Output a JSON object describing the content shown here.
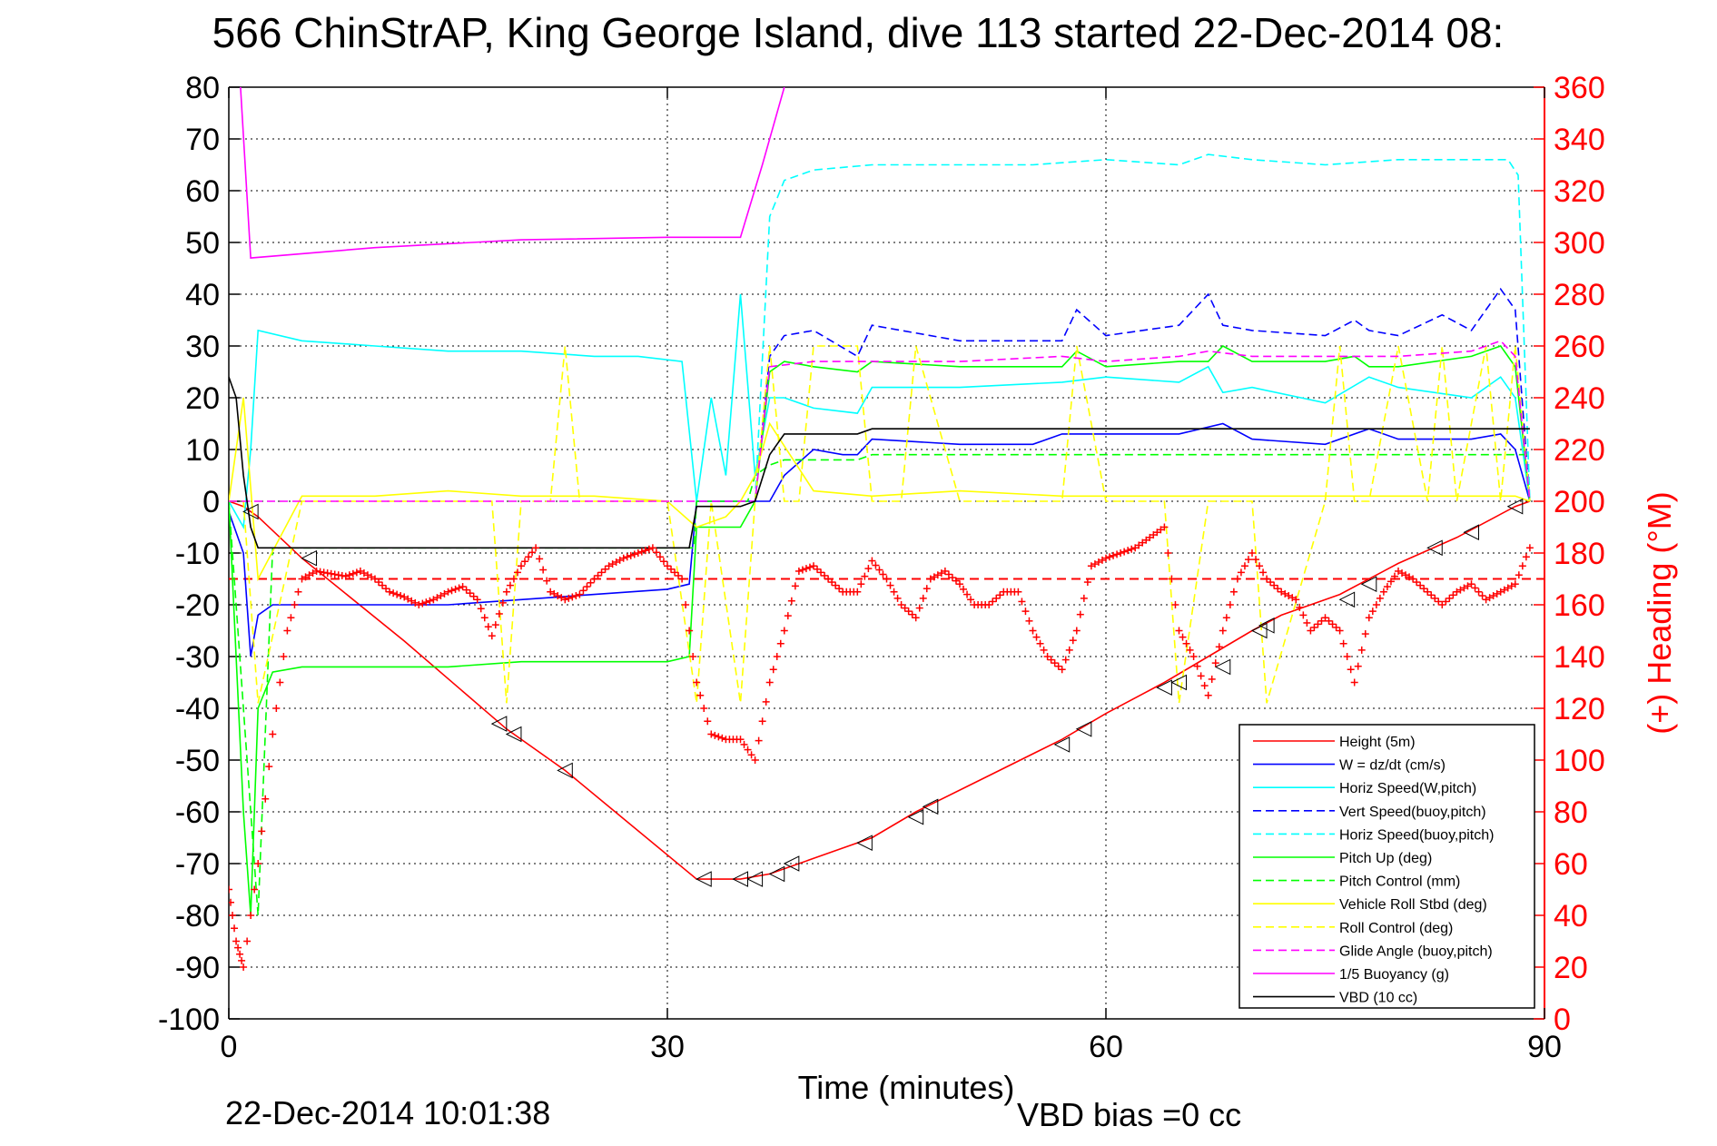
{
  "chart_data": {
    "type": "line",
    "title": "566 ChinStrAP, King George Island, dive 113 started 22-Dec-2014 08:",
    "xlabel": "Time (minutes)",
    "ylabel_right": "(+) Heading (°M)",
    "footer_left": "22-Dec-2014 10:01:38",
    "footer_right": "VBD bias =0 cc",
    "xlim": [
      0,
      90
    ],
    "ylim_left": [
      -100,
      80
    ],
    "ylim_right": [
      0,
      360
    ],
    "x_ticks": [
      "0",
      "30",
      "60",
      "90"
    ],
    "y_ticks_left": [
      "80",
      "70",
      "60",
      "50",
      "40",
      "30",
      "20",
      "10",
      "0",
      "-10",
      "-20",
      "-30",
      "-40",
      "-50",
      "-60",
      "-70",
      "-80",
      "-90",
      "-100"
    ],
    "y_ticks_right": [
      "360",
      "340",
      "320",
      "300",
      "280",
      "260",
      "240",
      "220",
      "200",
      "180",
      "160",
      "140",
      "120",
      "100",
      "80",
      "60",
      "40",
      "20",
      "0"
    ],
    "grid": true,
    "legend_position": "bottom-right",
    "series": [
      {
        "name": "Height (5m)",
        "color": "#ff0000",
        "style": "solid",
        "x": [
          0,
          1,
          2,
          5,
          12,
          19,
          23,
          32,
          35,
          37,
          40,
          44,
          47,
          52,
          57,
          60,
          64,
          67,
          70,
          72,
          76,
          80,
          84,
          88,
          89
        ],
        "y": [
          0,
          -1,
          -3,
          -11,
          -27,
          -44,
          -52,
          -73,
          -73,
          -72,
          -69,
          -65,
          -60,
          -53,
          -46,
          -41,
          -35,
          -30,
          -25,
          -22,
          -18,
          -12,
          -7,
          -1,
          0
        ]
      },
      {
        "name": "W = dz/dt (cm/s)",
        "color": "#0000ff",
        "style": "solid",
        "x": [
          0,
          1,
          1.5,
          2,
          3,
          5,
          10,
          15,
          20,
          25,
          30,
          31.5,
          32,
          33,
          35,
          36,
          37,
          38,
          40,
          42,
          43,
          44,
          50,
          55,
          57,
          60,
          65,
          68,
          70,
          75,
          78,
          80,
          85,
          87,
          88,
          89
        ],
        "y": [
          -2,
          -10,
          -30,
          -22,
          -20,
          -20,
          -20,
          -20,
          -19,
          -18,
          -17,
          -16,
          0,
          0,
          0,
          0,
          0,
          5,
          10,
          9,
          9,
          12,
          11,
          11,
          13,
          13,
          13,
          15,
          12,
          11,
          14,
          12,
          12,
          13,
          10,
          0
        ]
      },
      {
        "name": "Horiz Speed(W,pitch)",
        "color": "#00ffff",
        "style": "solid",
        "x": [
          0,
          1,
          1.5,
          2,
          5,
          10,
          15,
          20,
          25,
          28,
          31,
          32,
          33,
          34,
          35,
          36,
          37,
          38,
          40,
          43,
          44,
          50,
          57,
          60,
          65,
          67,
          68,
          70,
          75,
          78,
          80,
          85,
          87,
          88,
          89
        ],
        "y": [
          0,
          -5,
          10,
          33,
          31,
          30,
          29,
          29,
          28,
          28,
          27,
          0,
          20,
          5,
          40,
          5,
          20,
          20,
          18,
          17,
          22,
          22,
          23,
          24,
          23,
          26,
          21,
          22,
          19,
          24,
          22,
          20,
          24,
          20,
          0
        ]
      },
      {
        "name": "Vert Speed(buoy,pitch)",
        "color": "#0000ff",
        "style": "dashed",
        "x": [
          36,
          37,
          38,
          40,
          43,
          44,
          50,
          57,
          58,
          60,
          65,
          67,
          68,
          70,
          75,
          77,
          78,
          80,
          83,
          85,
          87,
          88,
          89
        ],
        "y": [
          0,
          28,
          32,
          33,
          28,
          34,
          31,
          31,
          37,
          32,
          34,
          40,
          34,
          33,
          32,
          35,
          33,
          32,
          36,
          33,
          41,
          37,
          0
        ]
      },
      {
        "name": "Horiz Speed(buoy,pitch)",
        "color": "#00ffff",
        "style": "dashed",
        "x": [
          36,
          37,
          38,
          40,
          44,
          50,
          55,
          60,
          65,
          67,
          70,
          75,
          80,
          85,
          87.5,
          88.2,
          89
        ],
        "y": [
          0,
          55,
          62,
          64,
          65,
          65,
          65,
          66,
          65,
          67,
          66,
          65,
          66,
          66,
          66,
          63,
          0
        ]
      },
      {
        "name": "Pitch Up (deg)",
        "color": "#00ff00",
        "style": "solid",
        "x": [
          0,
          1,
          1.5,
          2,
          3,
          5,
          10,
          15,
          20,
          25,
          30,
          31.5,
          32,
          33,
          35,
          36,
          37,
          38,
          40,
          43,
          44,
          50,
          57,
          58,
          60,
          65,
          67,
          68,
          70,
          75,
          77,
          78,
          80,
          85,
          87,
          88,
          89
        ],
        "y": [
          0,
          -60,
          -80,
          -40,
          -33,
          -32,
          -32,
          -32,
          -31,
          -31,
          -31,
          -30,
          -5,
          -5,
          -5,
          0,
          25,
          27,
          26,
          25,
          27,
          26,
          26,
          29,
          26,
          27,
          27,
          30,
          27,
          27,
          28,
          26,
          26,
          28,
          30,
          26,
          0
        ]
      },
      {
        "name": "Pitch Control (mm)",
        "color": "#00ff00",
        "style": "dashed",
        "x": [
          0,
          1,
          2,
          3,
          31.8,
          32,
          35.5,
          36,
          37,
          38,
          43,
          44,
          89
        ],
        "y": [
          0,
          -40,
          -80,
          -9,
          -9,
          0,
          0,
          5,
          7,
          8,
          8,
          9,
          9
        ]
      },
      {
        "name": "Vehicle Roll Stbd (deg)",
        "color": "#ffff00",
        "style": "solid",
        "x": [
          0,
          1,
          2,
          5,
          10,
          15,
          20,
          25,
          30,
          32,
          34,
          35,
          36,
          37,
          40,
          44,
          50,
          57,
          60,
          65,
          68,
          70,
          75,
          80,
          85,
          88,
          89
        ],
        "y": [
          0,
          20,
          -15,
          1,
          1,
          2,
          1,
          1,
          0,
          -5,
          -3,
          0,
          5,
          15,
          2,
          1,
          2,
          1,
          1,
          1,
          1,
          1,
          1,
          1,
          1,
          1,
          0
        ]
      },
      {
        "name": "Roll Control (deg)",
        "color": "#ffff00",
        "style": "dashed",
        "x": [
          0,
          1,
          2,
          5,
          10,
          18,
          19,
          20,
          22,
          23,
          24,
          30,
          32,
          33,
          35,
          36,
          37,
          38,
          39,
          40,
          43,
          44,
          46,
          47,
          50,
          57,
          58,
          60,
          64,
          65,
          67,
          70,
          71,
          75,
          76,
          77,
          78,
          80,
          82,
          83,
          84,
          86,
          87,
          88,
          89
        ],
        "y": [
          0,
          0,
          -39,
          0,
          0,
          0,
          -39,
          0,
          0,
          30,
          0,
          0,
          -39,
          0,
          -39,
          0,
          30,
          0,
          0,
          30,
          30,
          0,
          0,
          30,
          0,
          0,
          30,
          0,
          0,
          -39,
          0,
          0,
          -39,
          0,
          30,
          0,
          0,
          30,
          0,
          30,
          0,
          30,
          0,
          30,
          0
        ]
      },
      {
        "name": "Glide Angle (buoy,pitch)",
        "color": "#ff00ff",
        "style": "dashed",
        "x": [
          0,
          36,
          37,
          40,
          44,
          50,
          57,
          60,
          65,
          67,
          70,
          75,
          80,
          85,
          87,
          88,
          89
        ],
        "y": [
          0,
          0,
          26,
          27,
          27,
          27,
          28,
          27,
          28,
          29,
          28,
          28,
          28,
          29,
          31,
          28,
          0
        ]
      },
      {
        "name": "1/5 Buoyancy (g)",
        "color": "#ff00ff",
        "style": "solid",
        "x": [
          0.8,
          1.5,
          10,
          20,
          30,
          35,
          36.5,
          38
        ],
        "y": [
          80,
          47,
          49,
          50.5,
          51,
          51,
          65,
          80
        ]
      },
      {
        "name": "VBD (10 cc)",
        "color": "#000000",
        "style": "solid",
        "x": [
          0,
          0.5,
          1,
          1.5,
          2,
          31.5,
          32,
          34,
          35,
          36,
          37,
          38,
          42,
          43,
          44,
          89
        ],
        "y": [
          24,
          20,
          5,
          -5,
          -9,
          -9,
          -1,
          -1,
          -1,
          0,
          9,
          13,
          13,
          13,
          14,
          14
        ]
      }
    ],
    "heading": {
      "name": "Heading (°M)",
      "color": "#ff0000",
      "marker": "+",
      "x": [
        0,
        0.5,
        1,
        2,
        3,
        4,
        5,
        6,
        7,
        8,
        9,
        10,
        11,
        12,
        13,
        14,
        15,
        16,
        17,
        18,
        19,
        20,
        21,
        22,
        23,
        24,
        25,
        26,
        27,
        28,
        29,
        30,
        31,
        32,
        33,
        34,
        35,
        36,
        37,
        38,
        39,
        40,
        41,
        42,
        43,
        44,
        45,
        46,
        47,
        48,
        49,
        50,
        51,
        52,
        53,
        54,
        55,
        56,
        57,
        58,
        59,
        60,
        61,
        62,
        63,
        64,
        65,
        66,
        67,
        68,
        69,
        70,
        71,
        72,
        73,
        74,
        75,
        76,
        77,
        78,
        79,
        80,
        81,
        82,
        83,
        84,
        85,
        86,
        87,
        88,
        89
      ],
      "y": [
        50,
        30,
        20,
        60,
        110,
        150,
        170,
        173,
        172,
        171,
        173,
        170,
        165,
        163,
        160,
        162,
        165,
        167,
        162,
        148,
        165,
        175,
        182,
        165,
        162,
        164,
        170,
        175,
        178,
        180,
        182,
        175,
        170,
        130,
        110,
        108,
        108,
        100,
        130,
        150,
        173,
        175,
        170,
        165,
        165,
        177,
        170,
        160,
        155,
        170,
        173,
        168,
        160,
        160,
        165,
        165,
        150,
        140,
        135,
        150,
        175,
        178,
        180,
        182,
        186,
        190,
        150,
        140,
        125,
        150,
        170,
        180,
        170,
        165,
        162,
        150,
        155,
        150,
        130,
        155,
        165,
        173,
        170,
        165,
        160,
        165,
        168,
        162,
        165,
        168,
        182
      ]
    },
    "ref_line": {
      "name": "heading reference",
      "color": "#ff0000",
      "style": "dashed",
      "y_right": 170
    },
    "waypoints": {
      "marker": "triangle",
      "x": [
        1.5,
        5.5,
        18.5,
        19.5,
        23,
        32.5,
        35,
        36,
        37.5,
        38.5,
        43.5,
        47,
        48,
        57,
        58.5,
        64,
        65,
        68,
        70.5,
        71,
        76.5,
        78,
        82.5,
        85,
        88
      ],
      "y": [
        -2,
        -11,
        -43,
        -45,
        -52,
        -73,
        -73,
        -73,
        -72,
        -70,
        -66,
        -61,
        -59,
        -47,
        -44,
        -36,
        -35,
        -32,
        -25,
        -24,
        -19,
        -16,
        -9,
        -6,
        -1
      ]
    }
  }
}
